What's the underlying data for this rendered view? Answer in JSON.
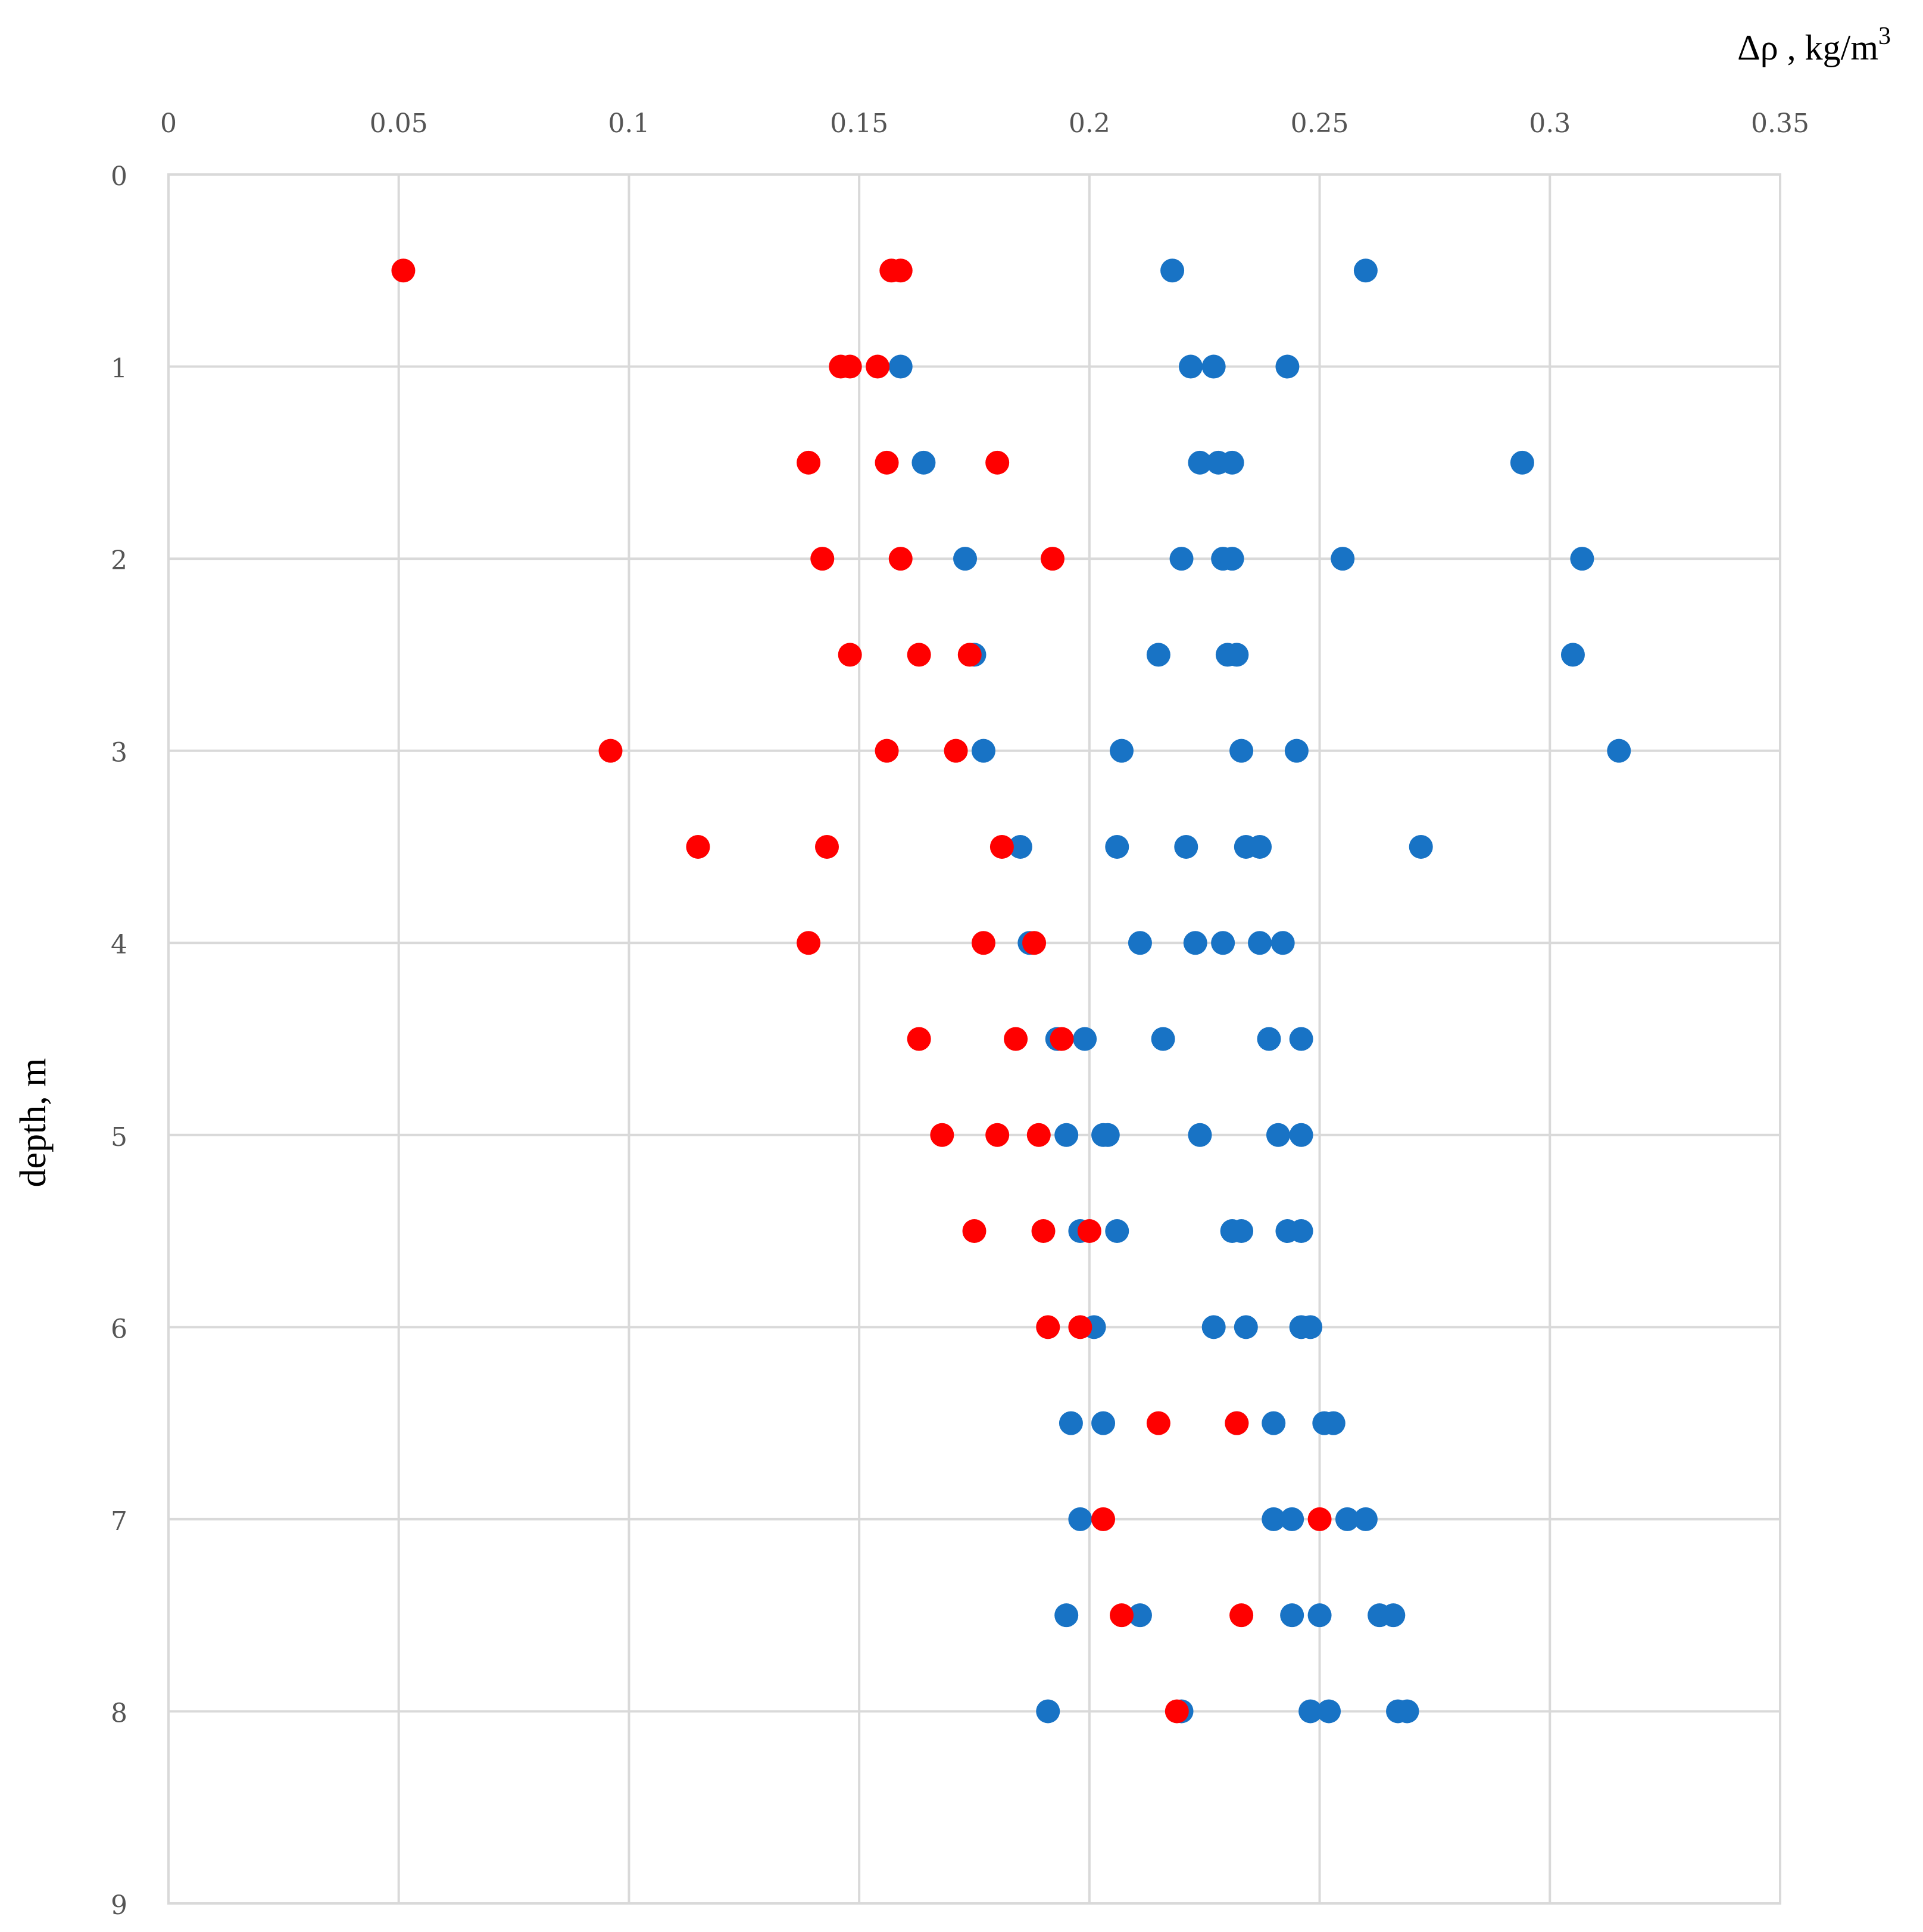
{
  "chart_data": {
    "type": "scatter",
    "title": "",
    "xlabel": "Δρ , kg/m³",
    "xlabel_main": "Δρ , kg/m",
    "xlabel_sup": "3",
    "ylabel": "depth, m",
    "xlim": [
      0,
      0.35
    ],
    "ylim": [
      0,
      9
    ],
    "x_axis_position": "top",
    "y_axis_inverted": true,
    "grid": true,
    "x_ticks": [
      "0",
      "0.05",
      "0.1",
      "0.15",
      "0.2",
      "0.25",
      "0.3",
      "0.35"
    ],
    "y_ticks": [
      "0",
      "1",
      "2",
      "3",
      "4",
      "5",
      "6",
      "7",
      "8",
      "9"
    ],
    "series": [
      {
        "name": "blue",
        "color": "#1873c5",
        "points": [
          [
            0.218,
            0.5
          ],
          [
            0.26,
            0.5
          ],
          [
            0.159,
            1.0
          ],
          [
            0.222,
            1.0
          ],
          [
            0.227,
            1.0
          ],
          [
            0.243,
            1.0
          ],
          [
            0.164,
            1.5
          ],
          [
            0.224,
            1.5
          ],
          [
            0.228,
            1.5
          ],
          [
            0.231,
            1.5
          ],
          [
            0.294,
            1.5
          ],
          [
            0.173,
            2.0
          ],
          [
            0.22,
            2.0
          ],
          [
            0.229,
            2.0
          ],
          [
            0.231,
            2.0
          ],
          [
            0.255,
            2.0
          ],
          [
            0.307,
            2.0
          ],
          [
            0.175,
            2.5
          ],
          [
            0.215,
            2.5
          ],
          [
            0.23,
            2.5
          ],
          [
            0.232,
            2.5
          ],
          [
            0.305,
            2.5
          ],
          [
            0.177,
            3.0
          ],
          [
            0.207,
            3.0
          ],
          [
            0.233,
            3.0
          ],
          [
            0.245,
            3.0
          ],
          [
            0.315,
            3.0
          ],
          [
            0.185,
            3.5
          ],
          [
            0.206,
            3.5
          ],
          [
            0.221,
            3.5
          ],
          [
            0.234,
            3.5
          ],
          [
            0.237,
            3.5
          ],
          [
            0.272,
            3.5
          ],
          [
            0.187,
            4.0
          ],
          [
            0.211,
            4.0
          ],
          [
            0.223,
            4.0
          ],
          [
            0.229,
            4.0
          ],
          [
            0.237,
            4.0
          ],
          [
            0.242,
            4.0
          ],
          [
            0.193,
            4.5
          ],
          [
            0.199,
            4.5
          ],
          [
            0.216,
            4.5
          ],
          [
            0.239,
            4.5
          ],
          [
            0.246,
            4.5
          ],
          [
            0.195,
            5.0
          ],
          [
            0.203,
            5.0
          ],
          [
            0.204,
            5.0
          ],
          [
            0.224,
            5.0
          ],
          [
            0.241,
            5.0
          ],
          [
            0.246,
            5.0
          ],
          [
            0.198,
            5.5
          ],
          [
            0.206,
            5.5
          ],
          [
            0.231,
            5.5
          ],
          [
            0.233,
            5.5
          ],
          [
            0.243,
            5.5
          ],
          [
            0.246,
            5.5
          ],
          [
            0.201,
            6.0
          ],
          [
            0.227,
            6.0
          ],
          [
            0.234,
            6.0
          ],
          [
            0.246,
            6.0
          ],
          [
            0.248,
            6.0
          ],
          [
            0.196,
            6.5
          ],
          [
            0.203,
            6.5
          ],
          [
            0.232,
            6.5
          ],
          [
            0.24,
            6.5
          ],
          [
            0.251,
            6.5
          ],
          [
            0.253,
            6.5
          ],
          [
            0.198,
            7.0
          ],
          [
            0.24,
            7.0
          ],
          [
            0.244,
            7.0
          ],
          [
            0.256,
            7.0
          ],
          [
            0.26,
            7.0
          ],
          [
            0.195,
            7.5
          ],
          [
            0.211,
            7.5
          ],
          [
            0.244,
            7.5
          ],
          [
            0.25,
            7.5
          ],
          [
            0.263,
            7.5
          ],
          [
            0.266,
            7.5
          ],
          [
            0.191,
            8.0
          ],
          [
            0.22,
            8.0
          ],
          [
            0.248,
            8.0
          ],
          [
            0.252,
            8.0
          ],
          [
            0.267,
            8.0
          ],
          [
            0.269,
            8.0
          ]
        ]
      },
      {
        "name": "red",
        "color": "#ff0000",
        "points": [
          [
            0.051,
            0.5
          ],
          [
            0.157,
            0.5
          ],
          [
            0.159,
            0.5
          ],
          [
            0.146,
            1.0
          ],
          [
            0.148,
            1.0
          ],
          [
            0.154,
            1.0
          ],
          [
            0.139,
            1.5
          ],
          [
            0.156,
            1.5
          ],
          [
            0.18,
            1.5
          ],
          [
            0.142,
            2.0
          ],
          [
            0.159,
            2.0
          ],
          [
            0.192,
            2.0
          ],
          [
            0.148,
            2.5
          ],
          [
            0.163,
            2.5
          ],
          [
            0.174,
            2.5
          ],
          [
            0.096,
            3.0
          ],
          [
            0.156,
            3.0
          ],
          [
            0.171,
            3.0
          ],
          [
            0.115,
            3.5
          ],
          [
            0.143,
            3.5
          ],
          [
            0.181,
            3.5
          ],
          [
            0.139,
            4.0
          ],
          [
            0.177,
            4.0
          ],
          [
            0.188,
            4.0
          ],
          [
            0.163,
            4.5
          ],
          [
            0.184,
            4.5
          ],
          [
            0.194,
            4.5
          ],
          [
            0.168,
            5.0
          ],
          [
            0.18,
            5.0
          ],
          [
            0.189,
            5.0
          ],
          [
            0.175,
            5.5
          ],
          [
            0.19,
            5.5
          ],
          [
            0.2,
            5.5
          ],
          [
            0.191,
            6.0
          ],
          [
            0.198,
            6.0
          ],
          [
            0.215,
            6.5
          ],
          [
            0.232,
            6.5
          ],
          [
            0.203,
            7.0
          ],
          [
            0.25,
            7.0
          ],
          [
            0.207,
            7.5
          ],
          [
            0.233,
            7.5
          ],
          [
            0.219,
            8.0
          ]
        ]
      }
    ]
  }
}
